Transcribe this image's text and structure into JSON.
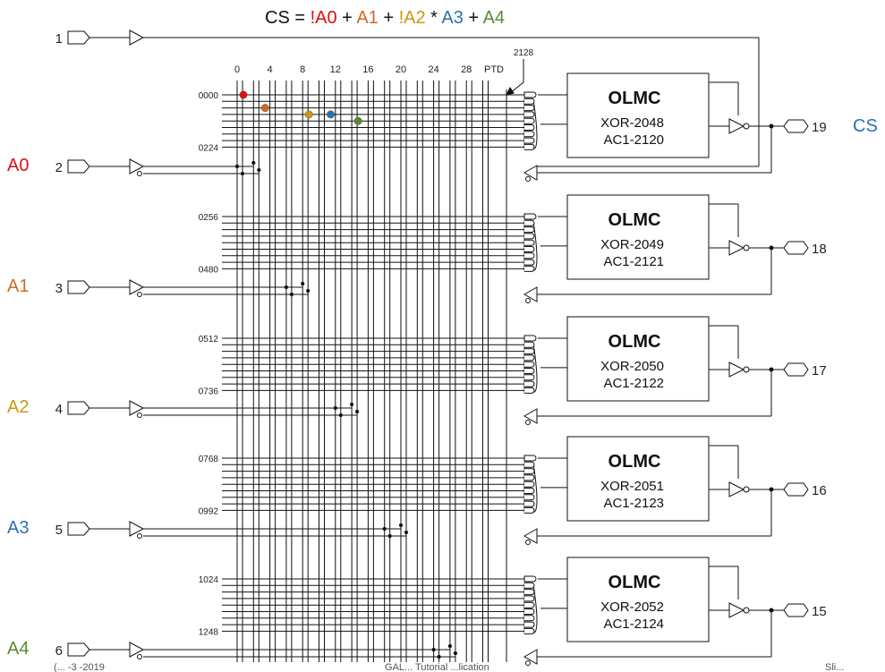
{
  "equation": {
    "prefix": "CS =",
    "terms": [
      {
        "text": "!A0",
        "color": "#e01010"
      },
      {
        "text": "+",
        "color": "#111111"
      },
      {
        "text": "A1",
        "color": "#d06a20"
      },
      {
        "text": "+",
        "color": "#111111"
      },
      {
        "text": "!A2",
        "color": "#c89a10"
      },
      {
        "text": "*",
        "color": "#111111"
      },
      {
        "text": "A3",
        "color": "#2f6fb0"
      },
      {
        "text": "+",
        "color": "#111111"
      },
      {
        "text": "A4",
        "color": "#5a8a30"
      }
    ]
  },
  "column_numbers": [
    "0",
    "4",
    "8",
    "12",
    "16",
    "20",
    "24",
    "28"
  ],
  "ptd_label": "PTD",
  "ptd_number": "2128",
  "inputs": [
    {
      "pin": "1",
      "signal": "",
      "color": "#111111"
    },
    {
      "pin": "2",
      "signal": "A0",
      "color": "#e01010"
    },
    {
      "pin": "3",
      "signal": "A1",
      "color": "#d06a20"
    },
    {
      "pin": "4",
      "signal": "A2",
      "color": "#c89a10"
    },
    {
      "pin": "5",
      "signal": "A3",
      "color": "#2f6fb0"
    },
    {
      "pin": "6",
      "signal": "A4",
      "color": "#5a8a30"
    }
  ],
  "olmc_blocks": [
    {
      "title": "OLMC",
      "xor": "XOR-2048",
      "ac1": "AC1-2120",
      "row_first": "0000",
      "row_last": "0224",
      "out_pin": "19",
      "out_signal": "CS",
      "out_color": "#2f6fb0"
    },
    {
      "title": "OLMC",
      "xor": "XOR-2049",
      "ac1": "AC1-2121",
      "row_first": "0256",
      "row_last": "0480",
      "out_pin": "18",
      "out_signal": "",
      "out_color": "#111111"
    },
    {
      "title": "OLMC",
      "xor": "XOR-2050",
      "ac1": "AC1-2122",
      "row_first": "0512",
      "row_last": "0736",
      "out_pin": "17",
      "out_signal": "",
      "out_color": "#111111"
    },
    {
      "title": "OLMC",
      "xor": "XOR-2051",
      "ac1": "AC1-2123",
      "row_first": "0768",
      "row_last": "0992",
      "out_pin": "16",
      "out_signal": "",
      "out_color": "#111111"
    },
    {
      "title": "OLMC",
      "xor": "XOR-2052",
      "ac1": "AC1-2124",
      "row_first": "1024",
      "row_last": "1248",
      "out_pin": "15",
      "out_signal": "",
      "out_color": "#111111"
    }
  ],
  "fuse_dots": [
    {
      "column": 0,
      "color": "#e01010"
    },
    {
      "column": 3,
      "color": "#d06a20"
    },
    {
      "column": 8,
      "color": "#c89a10"
    },
    {
      "column": 11,
      "color": "#2f6fb0"
    },
    {
      "column": 14,
      "color": "#5a8a30"
    }
  ],
  "footer_left": "(...   -3   -2019",
  "footer_mid": "GAL... Tutorial ...lication",
  "footer_right": "Sli..."
}
